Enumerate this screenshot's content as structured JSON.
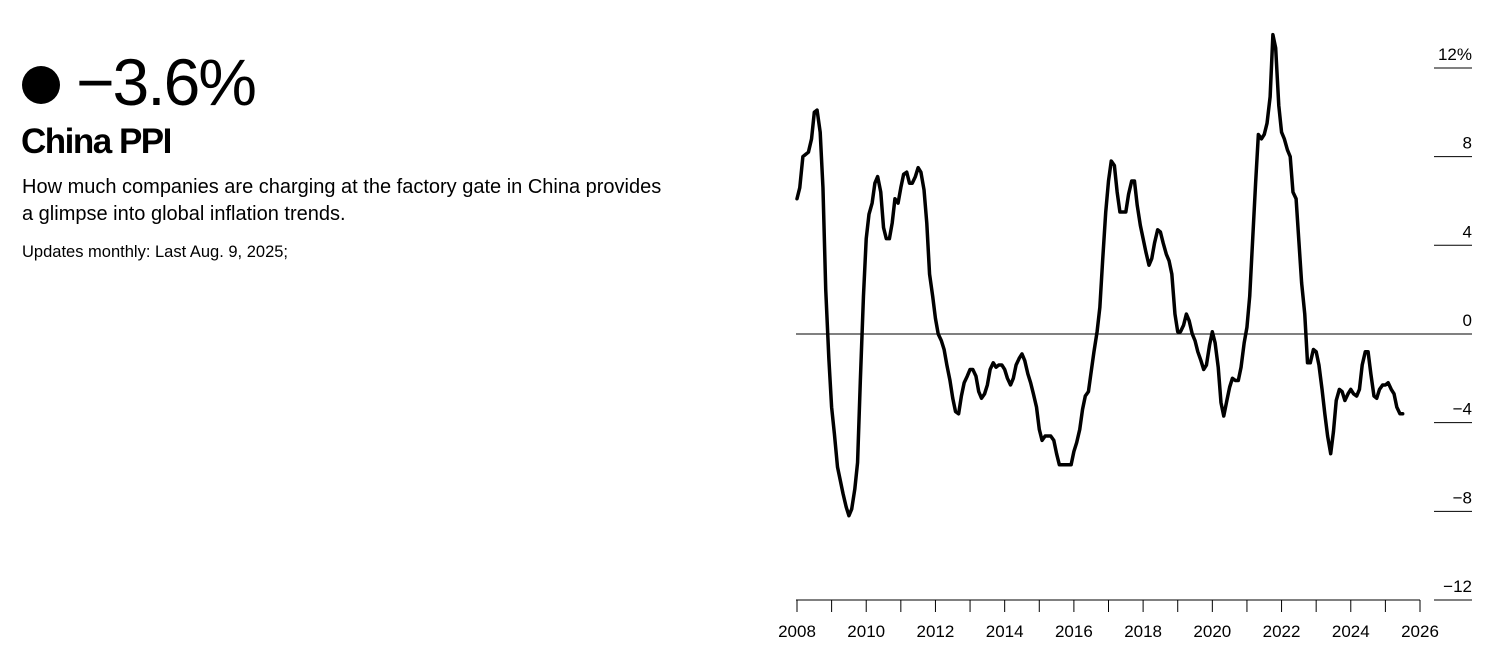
{
  "chart_data": {
    "type": "line",
    "headline": "−3.6%",
    "title": "China PPI",
    "subtitle": "How much companies are charging at the factory gate in China provides a glimpse into global inflation trends.",
    "note": "Updates monthly: Last Aug. 9, 2025;",
    "color": "#000000",
    "zero_line": true,
    "xlim": [
      2008,
      2026
    ],
    "xticks": [
      2008,
      2010,
      2012,
      2014,
      2016,
      2018,
      2020,
      2022,
      2024,
      2026
    ],
    "xminor_ticks": [
      2009,
      2011,
      2013,
      2015,
      2017,
      2019,
      2021,
      2023,
      2025
    ],
    "ylim": [
      -12,
      14
    ],
    "yticks": [
      {
        "value": -12,
        "label": "−12"
      },
      {
        "value": -8,
        "label": "−8"
      },
      {
        "value": -4,
        "label": "−4"
      },
      0,
      4,
      8,
      {
        "value": 12,
        "label": "12%"
      }
    ],
    "x": [
      2008,
      2008.08,
      2008.17,
      2008.25,
      2008.33,
      2008.42,
      2008.5,
      2008.58,
      2008.67,
      2008.75,
      2008.83,
      2008.92,
      2009,
      2009.08,
      2009.17,
      2009.25,
      2009.33,
      2009.42,
      2009.5,
      2009.58,
      2009.67,
      2009.75,
      2009.83,
      2009.92,
      2010,
      2010.08,
      2010.17,
      2010.25,
      2010.33,
      2010.42,
      2010.5,
      2010.58,
      2010.67,
      2010.75,
      2010.83,
      2010.92,
      2011,
      2011.08,
      2011.17,
      2011.25,
      2011.33,
      2011.42,
      2011.5,
      2011.58,
      2011.67,
      2011.75,
      2011.83,
      2011.92,
      2012,
      2012.08,
      2012.17,
      2012.25,
      2012.33,
      2012.42,
      2012.5,
      2012.58,
      2012.67,
      2012.75,
      2012.83,
      2012.92,
      2013,
      2013.08,
      2013.17,
      2013.25,
      2013.33,
      2013.42,
      2013.5,
      2013.58,
      2013.67,
      2013.75,
      2013.83,
      2013.92,
      2014,
      2014.08,
      2014.17,
      2014.25,
      2014.33,
      2014.42,
      2014.5,
      2014.58,
      2014.67,
      2014.75,
      2014.83,
      2014.92,
      2015,
      2015.08,
      2015.17,
      2015.25,
      2015.33,
      2015.42,
      2015.5,
      2015.58,
      2015.67,
      2015.75,
      2015.83,
      2015.92,
      2016,
      2016.08,
      2016.17,
      2016.25,
      2016.33,
      2016.42,
      2016.5,
      2016.58,
      2016.67,
      2016.75,
      2016.83,
      2016.92,
      2017,
      2017.08,
      2017.17,
      2017.25,
      2017.33,
      2017.42,
      2017.5,
      2017.58,
      2017.67,
      2017.75,
      2017.83,
      2017.92,
      2018,
      2018.08,
      2018.17,
      2018.25,
      2018.33,
      2018.42,
      2018.5,
      2018.58,
      2018.67,
      2018.75,
      2018.83,
      2018.92,
      2019,
      2019.08,
      2019.17,
      2019.25,
      2019.33,
      2019.42,
      2019.5,
      2019.58,
      2019.67,
      2019.75,
      2019.83,
      2019.92,
      2020,
      2020.08,
      2020.17,
      2020.25,
      2020.33,
      2020.42,
      2020.5,
      2020.58,
      2020.67,
      2020.75,
      2020.83,
      2020.92,
      2021,
      2021.08,
      2021.17,
      2021.25,
      2021.33,
      2021.42,
      2021.5,
      2021.58,
      2021.67,
      2021.75,
      2021.83,
      2021.92,
      2022,
      2022.08,
      2022.17,
      2022.25,
      2022.33,
      2022.42,
      2022.5,
      2022.58,
      2022.67,
      2022.75,
      2022.83,
      2022.92,
      2023,
      2023.08,
      2023.17,
      2023.25,
      2023.33,
      2023.42,
      2023.5,
      2023.58,
      2023.67,
      2023.75,
      2023.83,
      2023.92,
      2024,
      2024.08,
      2024.17,
      2024.25,
      2024.33,
      2024.42,
      2024.5,
      2024.58,
      2024.67,
      2024.75,
      2024.83,
      2024.92,
      2025,
      2025.08,
      2025.17,
      2025.25,
      2025.33,
      2025.42,
      2025.5
    ],
    "values": [
      6.1,
      6.6,
      8.0,
      8.1,
      8.2,
      8.8,
      10.0,
      10.1,
      9.1,
      6.6,
      2.0,
      -1.1,
      -3.3,
      -4.5,
      -6.0,
      -6.6,
      -7.2,
      -7.8,
      -8.2,
      -7.9,
      -7.0,
      -5.8,
      -2.1,
      1.7,
      4.3,
      5.4,
      5.9,
      6.8,
      7.1,
      6.4,
      4.8,
      4.3,
      4.3,
      5.0,
      6.1,
      5.9,
      6.6,
      7.2,
      7.3,
      6.8,
      6.8,
      7.1,
      7.5,
      7.3,
      6.5,
      5.0,
      2.7,
      1.7,
      0.7,
      0.0,
      -0.3,
      -0.7,
      -1.4,
      -2.1,
      -2.9,
      -3.5,
      -3.6,
      -2.8,
      -2.2,
      -1.9,
      -1.6,
      -1.6,
      -1.9,
      -2.6,
      -2.9,
      -2.7,
      -2.3,
      -1.6,
      -1.3,
      -1.5,
      -1.4,
      -1.4,
      -1.6,
      -2.0,
      -2.3,
      -2.0,
      -1.4,
      -1.1,
      -0.9,
      -1.2,
      -1.8,
      -2.2,
      -2.7,
      -3.3,
      -4.3,
      -4.8,
      -4.6,
      -4.6,
      -4.6,
      -4.8,
      -5.4,
      -5.9,
      -5.9,
      -5.9,
      -5.9,
      -5.9,
      -5.3,
      -4.9,
      -4.3,
      -3.4,
      -2.8,
      -2.6,
      -1.7,
      -0.8,
      0.1,
      1.2,
      3.3,
      5.5,
      6.9,
      7.8,
      7.6,
      6.4,
      5.5,
      5.5,
      5.5,
      6.3,
      6.9,
      6.9,
      5.8,
      4.9,
      4.3,
      3.7,
      3.1,
      3.4,
      4.1,
      4.7,
      4.6,
      4.1,
      3.6,
      3.3,
      2.7,
      0.9,
      0.1,
      0.1,
      0.4,
      0.9,
      0.6,
      0.0,
      -0.3,
      -0.8,
      -1.2,
      -1.6,
      -1.4,
      -0.5,
      0.1,
      -0.4,
      -1.5,
      -3.1,
      -3.7,
      -3.0,
      -2.4,
      -2.0,
      -2.1,
      -2.1,
      -1.5,
      -0.4,
      0.3,
      1.7,
      4.4,
      6.8,
      9.0,
      8.8,
      9.0,
      9.5,
      10.7,
      13.5,
      12.9,
      10.3,
      9.1,
      8.8,
      8.3,
      8.0,
      6.4,
      6.1,
      4.2,
      2.3,
      0.9,
      -1.3,
      -1.3,
      -0.7,
      -0.8,
      -1.4,
      -2.5,
      -3.6,
      -4.6,
      -5.4,
      -4.4,
      -3.0,
      -2.5,
      -2.6,
      -3.0,
      -2.7,
      -2.5,
      -2.7,
      -2.8,
      -2.5,
      -1.4,
      -0.8,
      -0.8,
      -1.8,
      -2.8,
      -2.9,
      -2.5,
      -2.3,
      -2.3,
      -2.2,
      -2.5,
      -2.7,
      -3.3,
      -3.6,
      -3.6
    ]
  }
}
